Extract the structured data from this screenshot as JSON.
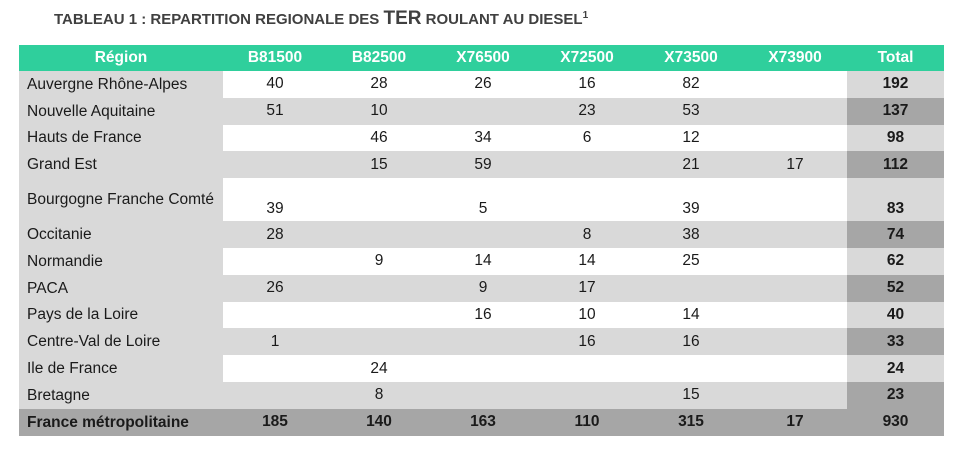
{
  "title": {
    "prefix": "Tableau 1 : Repartition regionale des ",
    "ter": "TER",
    "suffix": " roulant au diesel",
    "footnote": "1"
  },
  "table": {
    "headers": [
      "Région",
      "B81500",
      "B82500",
      "X76500",
      "X72500",
      "X73500",
      "X73900",
      "Total"
    ],
    "rows": [
      {
        "region": "Auvergne Rhône-Alpes",
        "values": [
          "40",
          "28",
          "26",
          "16",
          "82",
          ""
        ],
        "total": "192"
      },
      {
        "region": "Nouvelle Aquitaine",
        "values": [
          "51",
          "10",
          "",
          "23",
          "53",
          ""
        ],
        "total": "137"
      },
      {
        "region": "Hauts de France",
        "values": [
          "",
          "46",
          "34",
          "6",
          "12",
          ""
        ],
        "total": "98"
      },
      {
        "region": "Grand Est",
        "values": [
          "",
          "15",
          "59",
          "",
          "21",
          "17"
        ],
        "total": "112"
      },
      {
        "region": "Bourgogne Franche Comté",
        "values": [
          "39",
          "",
          "5",
          "",
          "39",
          ""
        ],
        "total": "83"
      },
      {
        "region": "Occitanie",
        "values": [
          "28",
          "",
          "",
          "8",
          "38",
          ""
        ],
        "total": "74"
      },
      {
        "region": "Normandie",
        "values": [
          "",
          "9",
          "14",
          "14",
          "25",
          ""
        ],
        "total": "62"
      },
      {
        "region": "PACA",
        "values": [
          "26",
          "",
          "9",
          "17",
          "",
          ""
        ],
        "total": "52"
      },
      {
        "region": "Pays de la Loire",
        "values": [
          "",
          "",
          "16",
          "10",
          "14",
          ""
        ],
        "total": "40"
      },
      {
        "region": "Centre-Val de Loire",
        "values": [
          "1",
          "",
          "",
          "16",
          "16",
          ""
        ],
        "total": "33"
      },
      {
        "region": "Ile de France",
        "values": [
          "",
          "24",
          "",
          "",
          "",
          ""
        ],
        "total": "24"
      },
      {
        "region": "Bretagne",
        "values": [
          "",
          "8",
          "",
          "",
          "15",
          ""
        ],
        "total": "23"
      }
    ],
    "footer": {
      "label": "France métropolitaine",
      "values": [
        "185",
        "140",
        "163",
        "110",
        "315",
        "17"
      ],
      "total": "930"
    }
  },
  "colors": {
    "header": "#2fcf9c",
    "light_gray": "#d9d9d9",
    "dark_gray": "#a6a6a6"
  }
}
